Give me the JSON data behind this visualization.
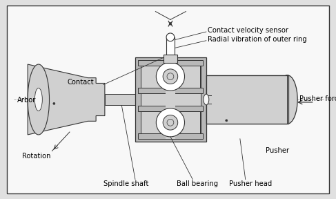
{
  "bg_color": "#e0e0e0",
  "inner_bg": "#f8f8f8",
  "gray_fill": "#b8b8b8",
  "light_gray": "#d0d0d0",
  "white_fill": "#ffffff",
  "dark_line": "#333333",
  "font_size": 7.2,
  "labels": {
    "contact": "Contact",
    "arbor": "Arbor",
    "rotation": "Rotation",
    "spindle_shaft": "Spindle shaft",
    "ball_bearing": "Ball bearing",
    "pusher_head": "Pusher head",
    "pusher": "Pusher",
    "pusher_force": "Pusher force",
    "contact_velocity_sensor": "Contact velocity sensor",
    "radial_vibration": "Radial vibration of outer ring"
  }
}
